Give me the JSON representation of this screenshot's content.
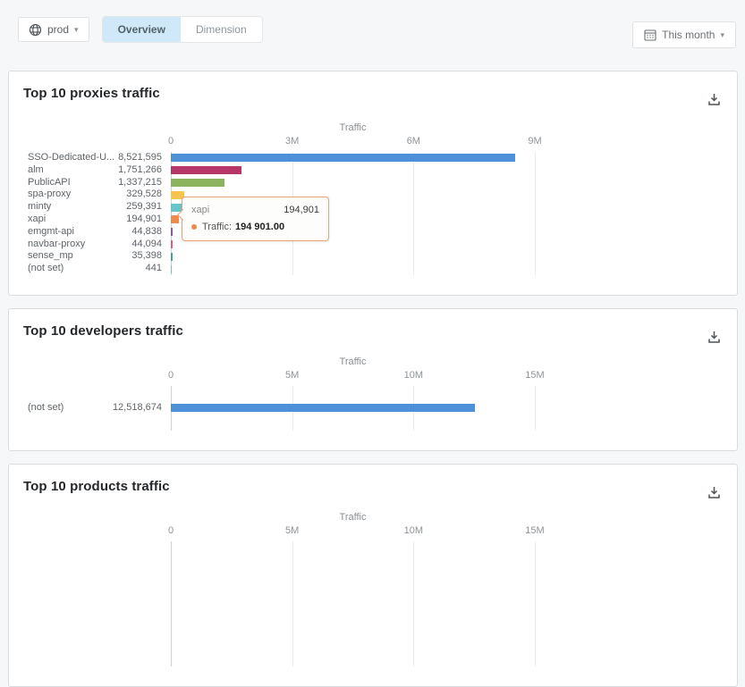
{
  "topbar": {
    "environment": {
      "icon": "globe-icon",
      "value": "prod",
      "dropdown_icon": "chevron-down-icon"
    },
    "tabs": [
      {
        "label": "Overview",
        "active": true
      },
      {
        "label": "Dimension",
        "active": false
      }
    ],
    "date_range": {
      "icon": "calendar-icon",
      "value": "This month",
      "dropdown_icon": "chevron-down-icon"
    }
  },
  "theme": {
    "page_bg": "#f6f7f8",
    "card_bg": "#ffffff",
    "active_tab_bg": "#cfe9f8",
    "tooltip_border": "#e9a47b",
    "accent_orange": "#ef8a4c"
  },
  "chart_data": [
    {
      "type": "bar",
      "orientation": "horizontal",
      "title": "Top 10 proxies traffic",
      "axis_title": "Traffic",
      "export_icon": "download-icon",
      "xlim": [
        0,
        9000000
      ],
      "grid": true,
      "ticks": [
        {
          "label": "0",
          "value": 0
        },
        {
          "label": "3M",
          "value": 3000000
        },
        {
          "label": "6M",
          "value": 6000000
        },
        {
          "label": "9M",
          "value": 9000000
        }
      ],
      "categories": [
        "SSO-Dedicated-U...",
        "alm",
        "PublicAPI",
        "spa-proxy",
        "minty",
        "xapi",
        "emgmt-api",
        "navbar-proxy",
        "sense_mp",
        "(not set)"
      ],
      "values": [
        8521595,
        1751266,
        1337215,
        329528,
        259391,
        194901,
        44838,
        44094,
        35398,
        441
      ],
      "value_labels": [
        "8,521,595",
        "1,751,266",
        "1,337,215",
        "329,528",
        "259,391",
        "194,901",
        "44,838",
        "44,094",
        "35,398",
        "441"
      ],
      "colors": [
        "#4e91d9",
        "#b43768",
        "#8cb45f",
        "#f6c44f",
        "#68c5cd",
        "#ef8a4c",
        "#9452a5",
        "#e85a7d",
        "#43a79c",
        "#7fb2e5"
      ],
      "tooltip": {
        "category": "xapi",
        "value_label": "194,901",
        "series_label": "Traffic:",
        "value_text": "194 901.00"
      }
    },
    {
      "type": "bar",
      "orientation": "horizontal",
      "title": "Top 10 developers traffic",
      "axis_title": "Traffic",
      "export_icon": "download-icon",
      "xlim": [
        0,
        15000000
      ],
      "grid": true,
      "ticks": [
        {
          "label": "0",
          "value": 0
        },
        {
          "label": "5M",
          "value": 5000000
        },
        {
          "label": "10M",
          "value": 10000000
        },
        {
          "label": "15M",
          "value": 15000000
        }
      ],
      "categories": [
        "(not set)"
      ],
      "values": [
        12518674
      ],
      "value_labels": [
        "12,518,674"
      ],
      "colors": [
        "#4e91d9"
      ]
    },
    {
      "type": "bar",
      "orientation": "horizontal",
      "title": "Top 10 products traffic",
      "axis_title": "Traffic",
      "export_icon": "download-icon",
      "xlim": [
        0,
        15000000
      ],
      "grid": true,
      "ticks": [
        {
          "label": "0",
          "value": 0
        },
        {
          "label": "5M",
          "value": 5000000
        },
        {
          "label": "10M",
          "value": 10000000
        },
        {
          "label": "15M",
          "value": 15000000
        }
      ],
      "categories": [],
      "values": [],
      "value_labels": [],
      "colors": []
    }
  ]
}
